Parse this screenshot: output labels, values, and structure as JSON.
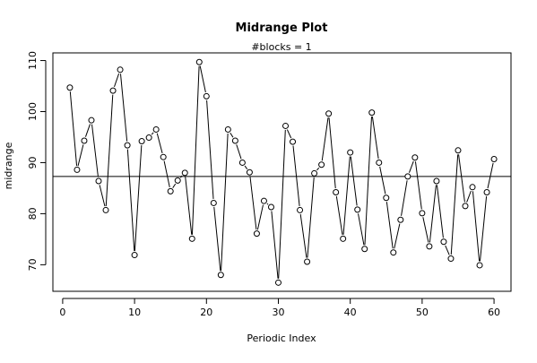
{
  "chart_data": {
    "type": "line",
    "title": "Midrange Plot",
    "subtitle": "#blocks =  1",
    "xlabel": "Periodic Index",
    "ylabel": "midrange",
    "xlim": [
      -1.36,
      62.36
    ],
    "ylim": [
      64.8,
      111.5
    ],
    "x_ticks": [
      0,
      10,
      20,
      30,
      40,
      50,
      60
    ],
    "y_ticks": [
      70,
      80,
      90,
      100,
      110
    ],
    "reference_line": 87.3,
    "grid": false,
    "legend": "none",
    "series": [
      {
        "x": [
          1,
          2,
          3,
          4,
          5,
          6,
          7,
          8,
          9,
          10,
          11,
          12,
          13,
          14,
          15,
          16,
          17,
          18,
          19,
          20,
          21,
          22,
          23,
          24,
          25,
          26,
          27,
          28,
          29,
          30,
          31,
          32,
          33,
          34,
          35,
          36,
          37,
          38,
          39,
          40,
          41,
          42,
          43,
          44,
          45,
          46,
          47,
          48,
          49,
          50,
          51,
          52,
          53,
          54,
          55,
          56,
          57,
          58,
          59,
          60
        ],
        "values": [
          104.7,
          88.6,
          94.3,
          98.3,
          86.4,
          80.7,
          104.1,
          108.2,
          93.4,
          71.9,
          94.2,
          94.9,
          96.5,
          91.1,
          84.4,
          86.5,
          88.0,
          75.1,
          109.7,
          103.0,
          82.1,
          68.0,
          96.5,
          94.3,
          90.0,
          88.1,
          76.1,
          82.5,
          81.3,
          66.5,
          97.2,
          94.1,
          80.7,
          70.6,
          87.9,
          89.6,
          99.6,
          84.2,
          75.1,
          92.0,
          80.8,
          73.1,
          99.8,
          90.0,
          83.1,
          72.4,
          78.8,
          87.3,
          91.0,
          80.1,
          73.6,
          86.4,
          74.5,
          71.2,
          92.4,
          81.5,
          85.2,
          69.9,
          84.2,
          90.7
        ]
      }
    ]
  }
}
